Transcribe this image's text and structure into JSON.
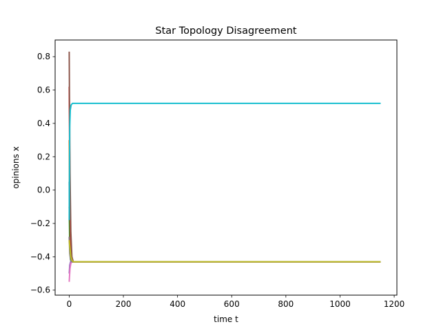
{
  "chart_data": {
    "type": "line",
    "title": "Star Topology Disagreement",
    "xlabel": "time t",
    "ylabel": "opinions x",
    "xlim": [
      -52,
      1210
    ],
    "ylim": [
      -0.63,
      0.9
    ],
    "xticks": [
      0,
      200,
      400,
      600,
      800,
      1000,
      1200
    ],
    "yticks": [
      -0.6,
      -0.4,
      -0.2,
      0.0,
      0.2,
      0.4,
      0.6,
      0.8
    ],
    "xtick_labels": [
      "0",
      "200",
      "400",
      "600",
      "800",
      "1000",
      "1200"
    ],
    "ytick_labels": [
      "−0.6",
      "−0.4",
      "−0.2",
      "0.0",
      "0.2",
      "0.4",
      "0.6",
      "0.8"
    ],
    "grid": false,
    "legend": "none",
    "series": [
      {
        "color": "#1f77b4",
        "x": [
          0,
          2,
          5,
          10,
          20,
          1150
        ],
        "y": [
          0.05,
          -0.3,
          -0.41,
          -0.43,
          -0.43,
          -0.43
        ]
      },
      {
        "color": "#ff7f0e",
        "x": [
          0,
          2,
          5,
          10,
          20,
          1150
        ],
        "y": [
          0.3,
          -0.2,
          -0.4,
          -0.43,
          -0.43,
          -0.43
        ]
      },
      {
        "color": "#2ca02c",
        "x": [
          0,
          2,
          5,
          10,
          20,
          1150
        ],
        "y": [
          -0.1,
          -0.35,
          -0.42,
          -0.43,
          -0.43,
          -0.43
        ]
      },
      {
        "color": "#d62728",
        "x": [
          0,
          2,
          5,
          10,
          20,
          1150
        ],
        "y": [
          0.62,
          0.1,
          -0.35,
          -0.43,
          -0.43,
          -0.43
        ]
      },
      {
        "color": "#9467bd",
        "x": [
          0,
          2,
          5,
          10,
          20,
          1150
        ],
        "y": [
          -0.5,
          -0.45,
          -0.43,
          -0.43,
          -0.43,
          -0.43
        ]
      },
      {
        "color": "#8c564b",
        "x": [
          0,
          1,
          3,
          6,
          10,
          15,
          20,
          1150
        ],
        "y": [
          0.83,
          0.55,
          0.1,
          -0.25,
          -0.4,
          -0.43,
          -0.43,
          -0.43
        ]
      },
      {
        "color": "#e377c2",
        "x": [
          0,
          1,
          3,
          6,
          10,
          20,
          1150
        ],
        "y": [
          -0.55,
          -0.52,
          -0.47,
          -0.44,
          -0.43,
          -0.43,
          -0.43
        ]
      },
      {
        "color": "#7f7f7f",
        "x": [
          0,
          2,
          5,
          10,
          20,
          1150
        ],
        "y": [
          -0.28,
          -0.38,
          -0.42,
          -0.43,
          -0.43,
          -0.43
        ]
      },
      {
        "color": "#bcbd22",
        "x": [
          0,
          1,
          3,
          6,
          10,
          15,
          20,
          1150
        ],
        "y": [
          -0.3,
          -0.32,
          -0.35,
          -0.4,
          -0.42,
          -0.43,
          -0.43,
          -0.43
        ]
      },
      {
        "color": "#17becf",
        "x": [
          0,
          1,
          2,
          4,
          7,
          12,
          20,
          1150
        ],
        "y": [
          -0.18,
          0.2,
          0.38,
          0.48,
          0.51,
          0.52,
          0.52,
          0.52
        ]
      }
    ]
  }
}
